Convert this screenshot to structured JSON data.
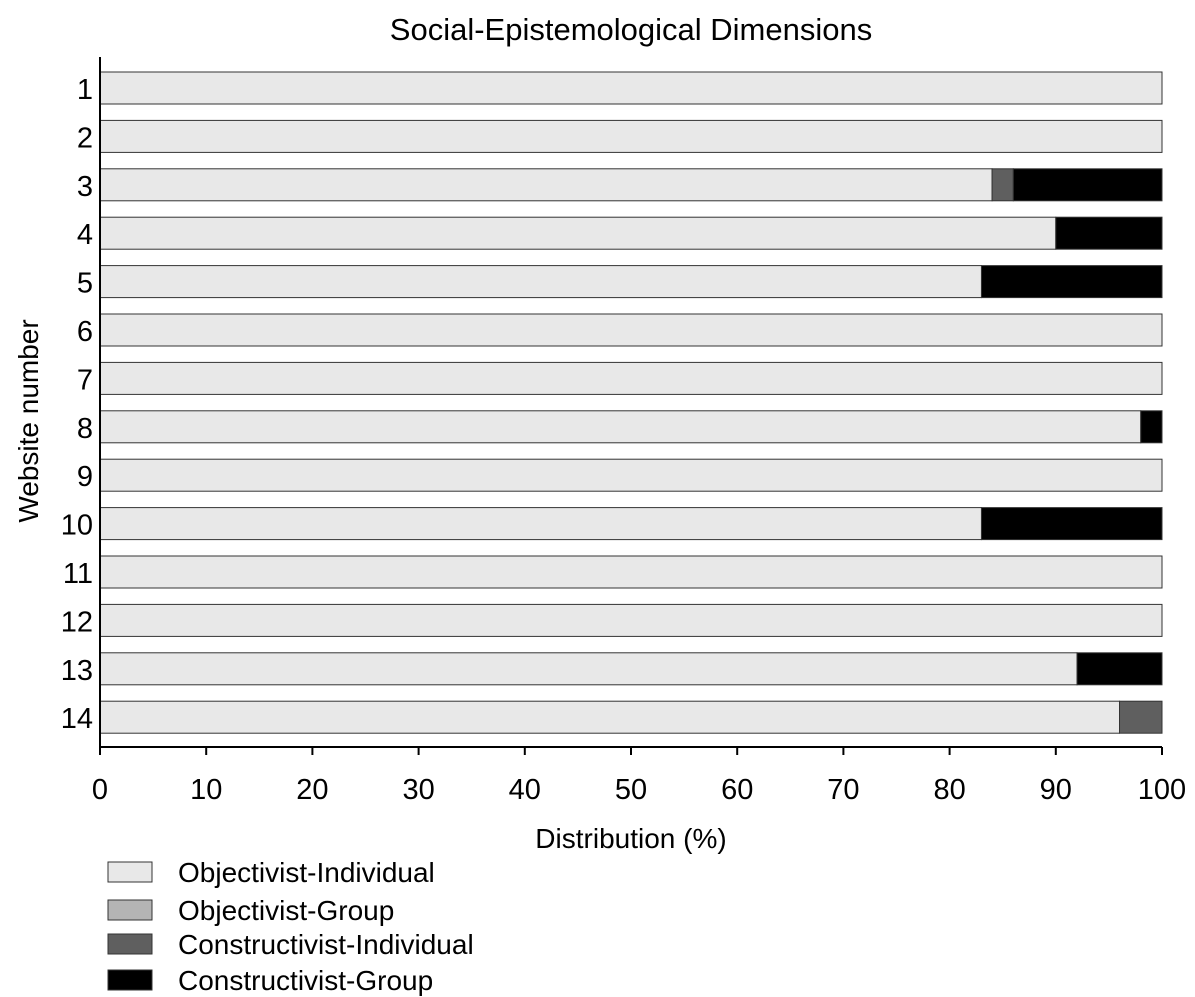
{
  "chart_data": {
    "type": "bar",
    "orientation": "horizontal",
    "stacked": true,
    "title": "Social-Epistemological Dimensions",
    "xlabel": "Distribution (%)",
    "ylabel": "Website number",
    "xlim": [
      0,
      100
    ],
    "xticks": [
      0,
      10,
      20,
      30,
      40,
      50,
      60,
      70,
      80,
      90,
      100
    ],
    "grid": false,
    "legend_position": "bottom-left",
    "categories": [
      "1",
      "2",
      "3",
      "4",
      "5",
      "6",
      "7",
      "8",
      "9",
      "10",
      "11",
      "12",
      "13",
      "14"
    ],
    "series": [
      {
        "name": "Objectivist-Individual",
        "color": "#e8e8e8",
        "values": [
          100,
          100,
          84,
          90,
          83,
          100,
          100,
          98,
          100,
          83,
          100,
          100,
          92,
          96
        ]
      },
      {
        "name": "Objectivist-Group",
        "color": "#b4b4b4",
        "values": [
          0,
          0,
          0,
          0,
          0,
          0,
          0,
          0,
          0,
          0,
          0,
          0,
          0,
          0
        ]
      },
      {
        "name": "Constructivist-Individual",
        "color": "#5f5f5f",
        "values": [
          0,
          0,
          2,
          0,
          0,
          0,
          0,
          0,
          0,
          0,
          0,
          0,
          0,
          4
        ]
      },
      {
        "name": "Constructivist-Group",
        "color": "#000000",
        "values": [
          0,
          0,
          14,
          10,
          17,
          0,
          0,
          2,
          0,
          17,
          0,
          0,
          8,
          0
        ]
      }
    ]
  }
}
